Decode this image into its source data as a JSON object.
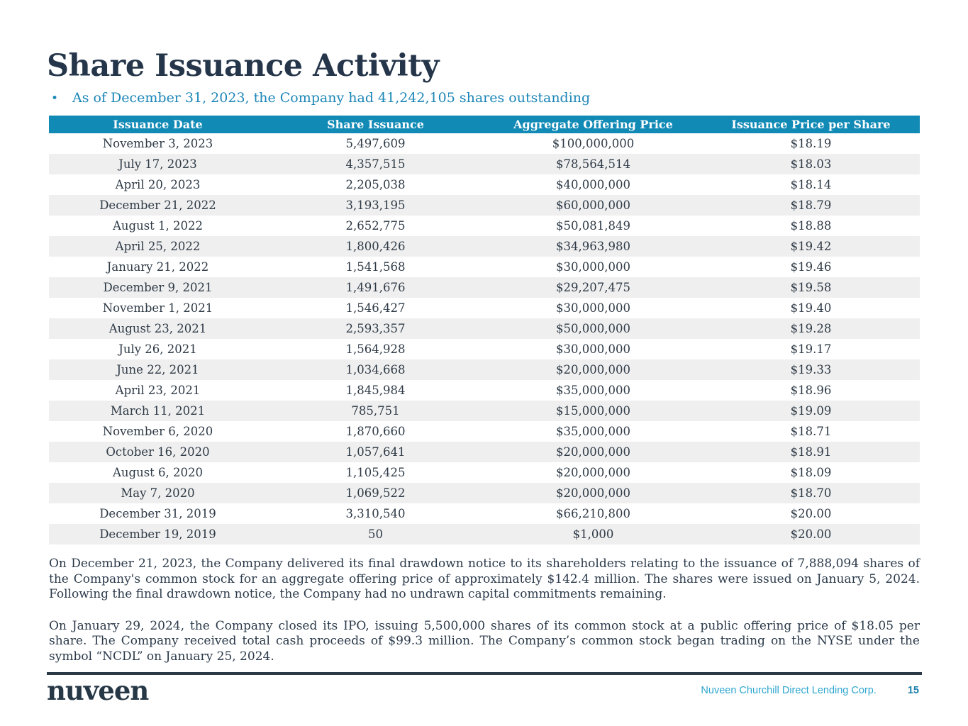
{
  "page": {
    "title": "Share Issuance Activity",
    "bullet_glyph": "•",
    "bullet": "As of December 31, 2023, the Company had 41,242,105 shares outstanding"
  },
  "table": {
    "columns": [
      "Issuance Date",
      "Share Issuance",
      "Aggregate Offering Price",
      "Issuance Price per Share"
    ],
    "rows": [
      [
        "November 3, 2023",
        "5,497,609",
        "$100,000,000",
        "$18.19"
      ],
      [
        "July 17, 2023",
        "4,357,515",
        "$78,564,514",
        "$18.03"
      ],
      [
        "April 20, 2023",
        "2,205,038",
        "$40,000,000",
        "$18.14"
      ],
      [
        "December 21, 2022",
        "3,193,195",
        "$60,000,000",
        "$18.79"
      ],
      [
        "August 1, 2022",
        "2,652,775",
        "$50,081,849",
        "$18.88"
      ],
      [
        "April 25, 2022",
        "1,800,426",
        "$34,963,980",
        "$19.42"
      ],
      [
        "January 21, 2022",
        "1,541,568",
        "$30,000,000",
        "$19.46"
      ],
      [
        "December 9, 2021",
        "1,491,676",
        "$29,207,475",
        "$19.58"
      ],
      [
        "November 1, 2021",
        "1,546,427",
        "$30,000,000",
        "$19.40"
      ],
      [
        "August 23, 2021",
        "2,593,357",
        "$50,000,000",
        "$19.28"
      ],
      [
        "July 26, 2021",
        "1,564,928",
        "$30,000,000",
        "$19.17"
      ],
      [
        "June 22, 2021",
        "1,034,668",
        "$20,000,000",
        "$19.33"
      ],
      [
        "April 23, 2021",
        "1,845,984",
        "$35,000,000",
        "$18.96"
      ],
      [
        "March 11, 2021",
        "785,751",
        "$15,000,000",
        "$19.09"
      ],
      [
        "November 6, 2020",
        "1,870,660",
        "$35,000,000",
        "$18.71"
      ],
      [
        "October 16, 2020",
        "1,057,641",
        "$20,000,000",
        "$18.91"
      ],
      [
        "August 6, 2020",
        "1,105,425",
        "$20,000,000",
        "$18.09"
      ],
      [
        "May 7, 2020",
        "1,069,522",
        "$20,000,000",
        "$18.70"
      ],
      [
        "December 31, 2019",
        "3,310,540",
        "$66,210,800",
        "$20.00"
      ],
      [
        "December 19, 2019",
        "50",
        "$1,000",
        "$20.00"
      ]
    ]
  },
  "paragraphs": [
    "On December 21, 2023, the Company delivered its final drawdown notice to its shareholders relating to the issuance of 7,888,094 shares of the Company's common stock for an aggregate offering price of approximately $142.4 million. The shares were issued on January 5, 2024. Following the final drawdown notice, the Company had no undrawn capital commitments remaining.",
    "On January 29, 2024, the Company closed its IPO, issuing 5,500,000 shares of its common stock at a public offering price of $18.05 per share. The Company received total cash proceeds of $99.3 million. The Company’s common stock began trading on the NYSE under the symbol “NCDL” on January 25, 2024."
  ],
  "footer": {
    "logo": "nuveen",
    "company": "Nuveen Churchill Direct Lending Corp.",
    "page_number": "15"
  },
  "colors": {
    "table_header_blue": "#128ab6",
    "bullet_blue": "#1c86b8",
    "title_navy": "#25364a",
    "stripe_gray": "#efefef",
    "footer_divider_navy": "#2b3845",
    "footer_company_blue": "#2fa6cf",
    "page_number_blue": "#177fab"
  }
}
